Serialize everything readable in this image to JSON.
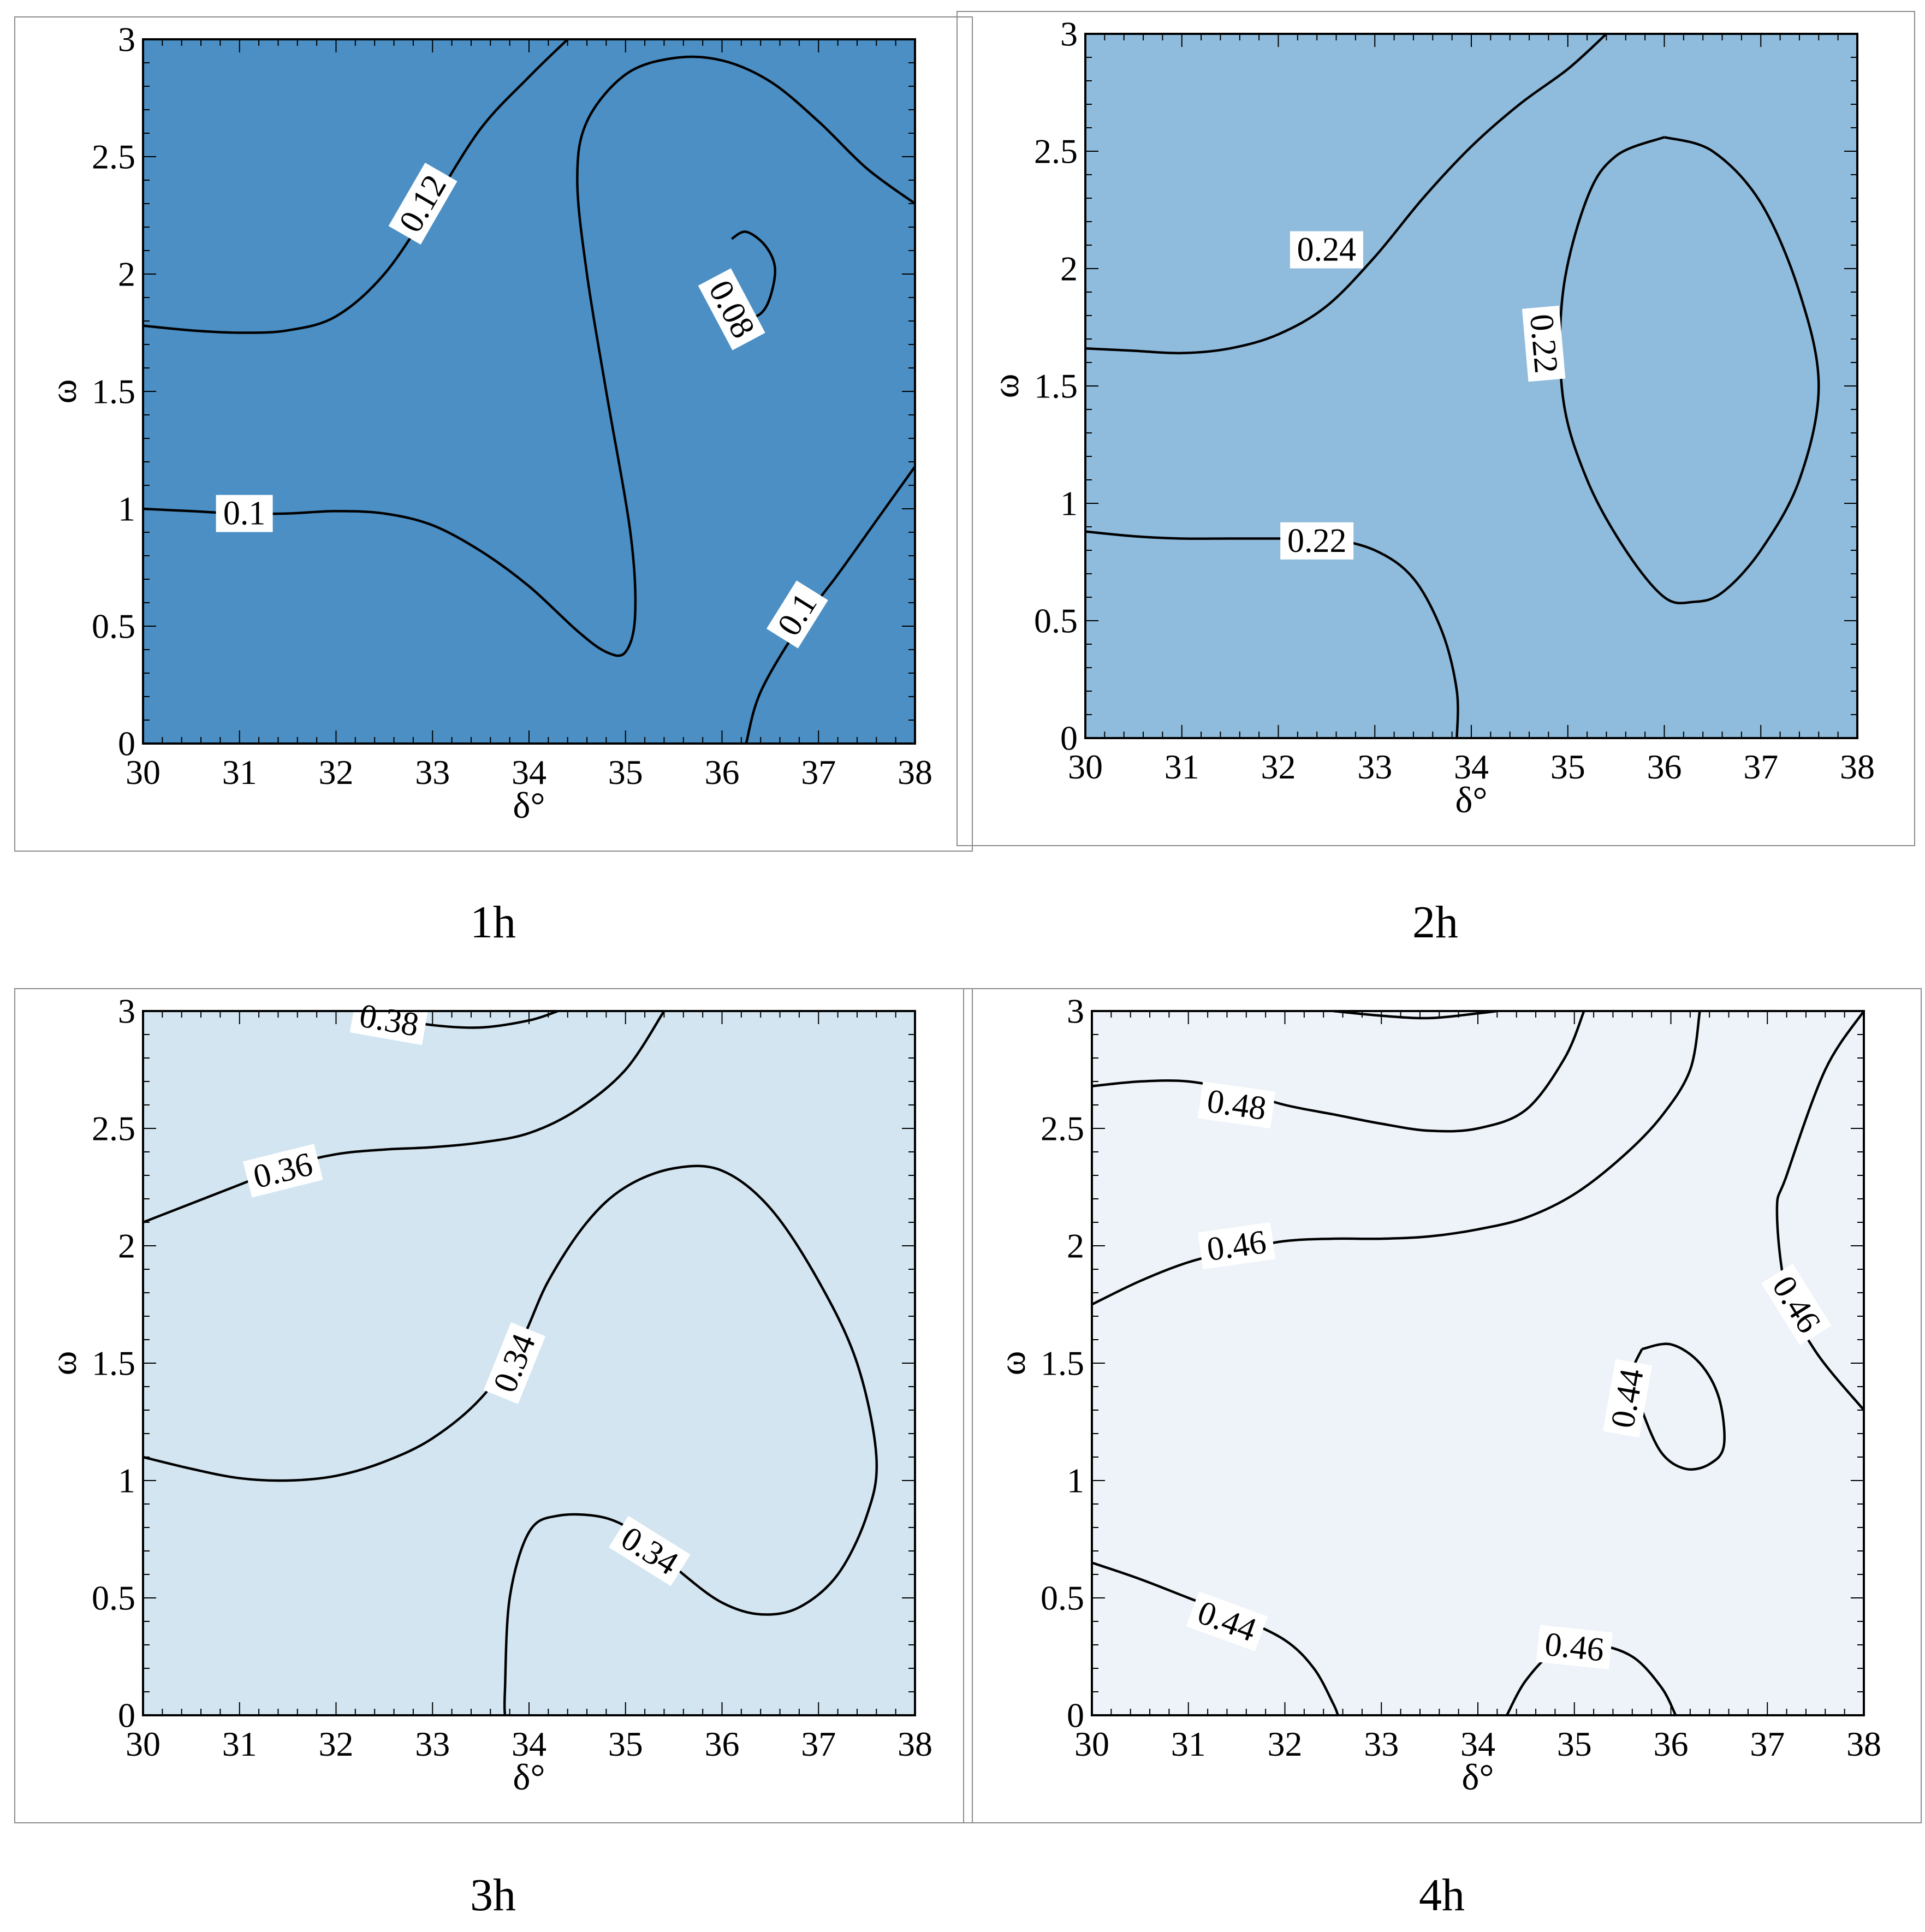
{
  "chart_data": [
    {
      "type": "contour",
      "caption": "1h",
      "fill_color": "#4b8fc4",
      "xlabel": "δ°",
      "ylabel": "ω",
      "xlim": [
        30,
        38
      ],
      "ylim": [
        0,
        3
      ],
      "xticks": [
        "30",
        "31",
        "32",
        "33",
        "34",
        "35",
        "36",
        "37",
        "38"
      ],
      "yticks": [
        "0",
        "0.5",
        "1",
        "1.5",
        "2",
        "2.5",
        "3"
      ],
      "contours": [
        {
          "level": "0.12",
          "points": [
            [
              30,
              1.78
            ],
            [
              30.5,
              1.76
            ],
            [
              31,
              1.75
            ],
            [
              31.5,
              1.76
            ],
            [
              32,
              1.82
            ],
            [
              32.5,
              2.0
            ],
            [
              33,
              2.3
            ],
            [
              33.5,
              2.62
            ],
            [
              34,
              2.84
            ],
            [
              34.4,
              3.0
            ]
          ],
          "label": {
            "text": "0.12",
            "x": 32.9,
            "y": 2.3,
            "angle": -60
          }
        },
        {
          "level": "0.1",
          "points": [
            [
              30,
              1.0
            ],
            [
              30.5,
              0.99
            ],
            [
              31,
              0.98
            ],
            [
              31.5,
              0.98
            ],
            [
              32,
              0.99
            ],
            [
              32.5,
              0.98
            ],
            [
              33,
              0.93
            ],
            [
              33.5,
              0.82
            ],
            [
              34,
              0.67
            ],
            [
              34.5,
              0.48
            ],
            [
              34.8,
              0.39
            ],
            [
              35.0,
              0.39
            ],
            [
              35.1,
              0.55
            ],
            [
              35.05,
              0.9
            ],
            [
              34.8,
              1.5
            ],
            [
              34.6,
              2.0
            ],
            [
              34.5,
              2.4
            ],
            [
              34.6,
              2.65
            ],
            [
              35.0,
              2.85
            ],
            [
              35.5,
              2.92
            ],
            [
              36.0,
              2.91
            ],
            [
              36.5,
              2.82
            ],
            [
              37.0,
              2.65
            ],
            [
              37.5,
              2.45
            ],
            [
              38,
              2.3
            ]
          ],
          "label": {
            "text": "0.1",
            "x": 31.05,
            "y": 0.98,
            "angle": 0
          }
        },
        {
          "level": "0.1",
          "points": [
            [
              36.25,
              0
            ],
            [
              36.4,
              0.22
            ],
            [
              36.8,
              0.5
            ],
            [
              37.2,
              0.72
            ],
            [
              37.6,
              0.95
            ],
            [
              38,
              1.18
            ]
          ],
          "label": {
            "text": "0.1",
            "x": 36.78,
            "y": 0.55,
            "angle": -58
          }
        },
        {
          "level": "0.08",
          "points": [
            [
              36.1,
              2.15
            ],
            [
              36.25,
              2.18
            ],
            [
              36.45,
              2.12
            ],
            [
              36.55,
              2.02
            ],
            [
              36.48,
              1.88
            ],
            [
              36.35,
              1.82
            ],
            [
              36.2,
              1.85
            ]
          ],
          "label": {
            "text": "0.08",
            "x": 36.1,
            "y": 1.85,
            "angle": 62
          }
        }
      ]
    },
    {
      "type": "contour",
      "caption": "2h",
      "fill_color": "#8fbcdc",
      "xlabel": "δ°",
      "ylabel": "ω",
      "xlim": [
        30,
        38
      ],
      "ylim": [
        0,
        3
      ],
      "xticks": [
        "30",
        "31",
        "32",
        "33",
        "34",
        "35",
        "36",
        "37",
        "38"
      ],
      "yticks": [
        "0",
        "0.5",
        "1",
        "1.5",
        "2",
        "2.5",
        "3"
      ],
      "contours": [
        {
          "level": "0.24",
          "points": [
            [
              30,
              1.66
            ],
            [
              30.5,
              1.65
            ],
            [
              31,
              1.64
            ],
            [
              31.5,
              1.66
            ],
            [
              32,
              1.72
            ],
            [
              32.5,
              1.84
            ],
            [
              33,
              2.05
            ],
            [
              33.5,
              2.3
            ],
            [
              34,
              2.52
            ],
            [
              34.5,
              2.7
            ],
            [
              35,
              2.85
            ],
            [
              35.4,
              3.0
            ]
          ],
          "label": {
            "text": "0.24",
            "x": 32.5,
            "y": 2.08,
            "angle": 0
          }
        },
        {
          "level": "0.22",
          "points": [
            [
              30,
              0.88
            ],
            [
              30.5,
              0.86
            ],
            [
              31,
              0.85
            ],
            [
              31.5,
              0.85
            ],
            [
              32,
              0.85
            ],
            [
              32.5,
              0.85
            ],
            [
              33,
              0.8
            ],
            [
              33.4,
              0.68
            ],
            [
              33.7,
              0.45
            ],
            [
              33.85,
              0.2
            ],
            [
              33.85,
              0
            ]
          ],
          "label": {
            "text": "0.22",
            "x": 32.4,
            "y": 0.84,
            "angle": 0
          }
        },
        {
          "level": "0.22",
          "points": [
            [
              36.0,
              2.56
            ],
            [
              36.5,
              2.5
            ],
            [
              37.0,
              2.28
            ],
            [
              37.4,
              1.9
            ],
            [
              37.6,
              1.5
            ],
            [
              37.4,
              1.1
            ],
            [
              37.0,
              0.8
            ],
            [
              36.6,
              0.62
            ],
            [
              36.3,
              0.58
            ],
            [
              36.0,
              0.6
            ],
            [
              35.6,
              0.8
            ],
            [
              35.2,
              1.1
            ],
            [
              34.95,
              1.45
            ],
            [
              34.95,
              1.9
            ],
            [
              35.2,
              2.3
            ],
            [
              35.5,
              2.48
            ],
            [
              36.0,
              2.56
            ]
          ],
          "label": {
            "text": "0.22",
            "x": 34.75,
            "y": 1.68,
            "angle": 85
          }
        }
      ]
    },
    {
      "type": "contour",
      "caption": "3h",
      "fill_color": "#d2e5f1",
      "xlabel": "δ°",
      "ylabel": "ω",
      "xlim": [
        30,
        38
      ],
      "ylim": [
        0,
        3
      ],
      "xticks": [
        "30",
        "31",
        "32",
        "33",
        "34",
        "35",
        "36",
        "37",
        "38"
      ],
      "yticks": [
        "0",
        "0.5",
        "1",
        "1.5",
        "2",
        "2.5",
        "3"
      ],
      "contours": [
        {
          "level": "0.38",
          "points": [
            [
              32.6,
              2.97
            ],
            [
              33.0,
              2.94
            ],
            [
              33.5,
              2.93
            ],
            [
              34.0,
              2.96
            ],
            [
              34.3,
              3.0
            ]
          ],
          "label": {
            "text": "0.38",
            "x": 32.55,
            "y": 2.96,
            "angle": 10
          }
        },
        {
          "level": "0.36",
          "points": [
            [
              30,
              2.1
            ],
            [
              30.5,
              2.18
            ],
            [
              31,
              2.26
            ],
            [
              31.5,
              2.34
            ],
            [
              32,
              2.39
            ],
            [
              32.5,
              2.41
            ],
            [
              33,
              2.42
            ],
            [
              33.5,
              2.44
            ],
            [
              34,
              2.48
            ],
            [
              34.5,
              2.58
            ],
            [
              35,
              2.75
            ],
            [
              35.4,
              3.0
            ]
          ],
          "label": {
            "text": "0.36",
            "x": 31.45,
            "y": 2.32,
            "angle": -14
          }
        },
        {
          "level": "0.34",
          "points": [
            [
              30,
              1.1
            ],
            [
              30.5,
              1.05
            ],
            [
              31,
              1.01
            ],
            [
              31.5,
              1.0
            ],
            [
              32,
              1.02
            ],
            [
              32.5,
              1.08
            ],
            [
              33,
              1.18
            ],
            [
              33.5,
              1.35
            ],
            [
              33.9,
              1.58
            ],
            [
              34.2,
              1.85
            ],
            [
              34.6,
              2.1
            ],
            [
              35.0,
              2.25
            ],
            [
              35.5,
              2.33
            ],
            [
              36.0,
              2.32
            ],
            [
              36.5,
              2.16
            ],
            [
              37.0,
              1.85
            ],
            [
              37.4,
              1.5
            ],
            [
              37.6,
              1.1
            ],
            [
              37.5,
              0.85
            ],
            [
              37.2,
              0.6
            ],
            [
              36.8,
              0.46
            ],
            [
              36.4,
              0.43
            ],
            [
              36.0,
              0.48
            ],
            [
              35.6,
              0.6
            ],
            [
              35.2,
              0.75
            ],
            [
              34.8,
              0.84
            ],
            [
              34.3,
              0.85
            ],
            [
              34.0,
              0.78
            ],
            [
              33.8,
              0.5
            ],
            [
              33.75,
              0.1
            ],
            [
              33.75,
              0
            ]
          ],
          "label": {
            "text": "0.34",
            "x": 33.85,
            "y": 1.5,
            "angle": -68
          }
        },
        {
          "level": "0.34",
          "points": [],
          "label": {
            "text": "0.34",
            "x": 35.25,
            "y": 0.7,
            "angle": 32
          }
        }
      ]
    },
    {
      "type": "contour",
      "caption": "4h",
      "fill_color": "#edf3f8",
      "xlabel": "δ°",
      "ylabel": "ω",
      "xlim": [
        30,
        38
      ],
      "ylim": [
        0,
        3
      ],
      "xticks": [
        "30",
        "31",
        "32",
        "33",
        "34",
        "35",
        "36",
        "37",
        "38"
      ],
      "yticks": [
        "0",
        "0.5",
        "1",
        "1.5",
        "2",
        "2.5",
        "3"
      ],
      "contours": [
        {
          "level": "",
          "points": [
            [
              32.5,
              3.0
            ],
            [
              33.0,
              2.98
            ],
            [
              33.5,
              2.97
            ],
            [
              34.0,
              2.99
            ],
            [
              34.2,
              3.0
            ]
          ]
        },
        {
          "level": "0.48",
          "points": [
            [
              30,
              2.68
            ],
            [
              30.5,
              2.7
            ],
            [
              31,
              2.7
            ],
            [
              31.5,
              2.66
            ],
            [
              32,
              2.6
            ],
            [
              32.5,
              2.56
            ],
            [
              33,
              2.52
            ],
            [
              33.5,
              2.49
            ],
            [
              34,
              2.5
            ],
            [
              34.5,
              2.58
            ],
            [
              34.9,
              2.8
            ],
            [
              35.1,
              3.0
            ]
          ],
          "label": {
            "text": "0.48",
            "x": 31.5,
            "y": 2.6,
            "angle": 8
          }
        },
        {
          "level": "0.46",
          "points": [
            [
              30,
              1.75
            ],
            [
              30.5,
              1.85
            ],
            [
              31,
              1.93
            ],
            [
              31.5,
              1.98
            ],
            [
              32,
              2.02
            ],
            [
              32.5,
              2.03
            ],
            [
              33,
              2.03
            ],
            [
              33.5,
              2.04
            ],
            [
              34,
              2.07
            ],
            [
              34.5,
              2.12
            ],
            [
              35,
              2.22
            ],
            [
              35.5,
              2.38
            ],
            [
              35.9,
              2.55
            ],
            [
              36.2,
              2.75
            ],
            [
              36.3,
              3.0
            ]
          ],
          "label": {
            "text": "0.46",
            "x": 31.5,
            "y": 2.0,
            "angle": -8
          }
        },
        {
          "level": "0.46",
          "points": [
            [
              38,
              3.0
            ],
            [
              37.6,
              2.75
            ],
            [
              37.2,
              2.3
            ],
            [
              37.1,
              2.15
            ],
            [
              37.2,
              1.8
            ],
            [
              37.5,
              1.55
            ],
            [
              38,
              1.3
            ]
          ],
          "label": {
            "text": "0.46",
            "x": 37.3,
            "y": 1.75,
            "angle": 58
          }
        },
        {
          "level": "0.44",
          "points": [
            [
              35.7,
              1.56
            ],
            [
              36.0,
              1.58
            ],
            [
              36.3,
              1.5
            ],
            [
              36.5,
              1.35
            ],
            [
              36.55,
              1.15
            ],
            [
              36.4,
              1.07
            ],
            [
              36.15,
              1.05
            ],
            [
              35.9,
              1.12
            ],
            [
              35.7,
              1.3
            ],
            [
              35.6,
              1.45
            ],
            [
              35.7,
              1.56
            ]
          ],
          "label": {
            "text": "0.44",
            "x": 35.55,
            "y": 1.35,
            "angle": -80
          }
        },
        {
          "level": "0.44",
          "points": [
            [
              30,
              0.65
            ],
            [
              30.5,
              0.58
            ],
            [
              31,
              0.5
            ],
            [
              31.5,
              0.42
            ],
            [
              32,
              0.32
            ],
            [
              32.3,
              0.2
            ],
            [
              32.5,
              0.05
            ],
            [
              32.55,
              0
            ]
          ],
          "label": {
            "text": "0.44",
            "x": 31.4,
            "y": 0.4,
            "angle": 20
          }
        },
        {
          "level": "0.46",
          "points": [
            [
              34.3,
              0
            ],
            [
              34.5,
              0.15
            ],
            [
              34.8,
              0.27
            ],
            [
              35.2,
              0.3
            ],
            [
              35.6,
              0.25
            ],
            [
              35.9,
              0.12
            ],
            [
              36.05,
              0
            ]
          ],
          "label": {
            "text": "0.46",
            "x": 35.0,
            "y": 0.29,
            "angle": 6
          }
        }
      ]
    }
  ]
}
